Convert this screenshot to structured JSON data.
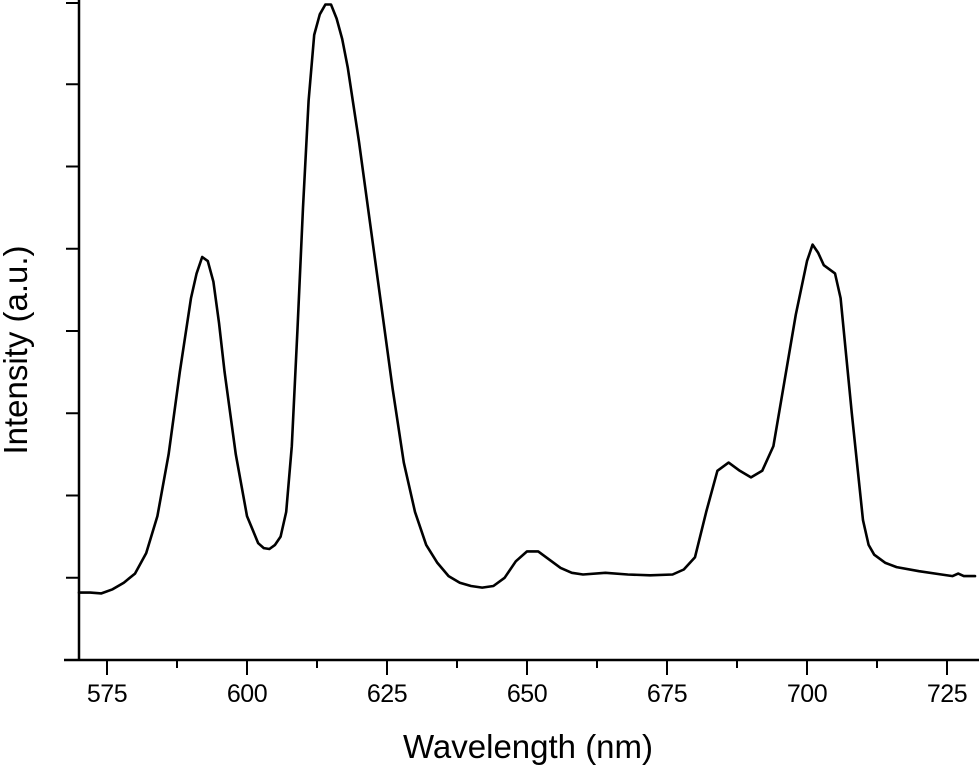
{
  "chart_data": {
    "type": "line",
    "title": "",
    "xlabel": "Wavelength (nm)",
    "ylabel": "Intensity (a.u.)",
    "xlim": [
      570,
      730
    ],
    "ylim": [
      0,
      8
    ],
    "x_ticks": [
      575,
      600,
      625,
      650,
      675,
      700,
      725
    ],
    "x_minor_ticks": [
      587.5,
      612.5,
      637.5,
      662.5,
      687.5,
      712.5
    ],
    "y_ticks": [
      0,
      1,
      2,
      3,
      4,
      5,
      6,
      7,
      8
    ],
    "y_tick_labels_shown": false,
    "grid": false,
    "legend": null,
    "line_color": "#000000",
    "series": [
      {
        "name": "Intensity",
        "x": [
          570,
          572,
          574,
          576,
          578,
          580,
          582,
          584,
          586,
          588,
          590,
          591,
          592,
          593,
          594,
          595,
          596,
          598,
          600,
          602,
          603,
          604,
          605,
          606,
          607,
          608,
          609,
          610,
          611,
          612,
          613,
          614,
          615,
          616,
          617,
          618,
          620,
          622,
          624,
          626,
          628,
          630,
          632,
          634,
          636,
          638,
          640,
          642,
          644,
          646,
          648,
          650,
          652,
          654,
          656,
          658,
          660,
          664,
          668,
          672,
          676,
          678,
          680,
          682,
          684,
          686,
          688,
          690,
          692,
          694,
          696,
          698,
          700,
          701,
          702,
          703,
          704,
          705,
          706,
          707,
          708,
          710,
          711,
          712,
          714,
          716,
          720,
          724,
          726,
          727,
          728,
          730
        ],
        "y": [
          0.82,
          0.82,
          0.81,
          0.86,
          0.94,
          1.05,
          1.3,
          1.75,
          2.5,
          3.5,
          4.4,
          4.7,
          4.9,
          4.85,
          4.6,
          4.1,
          3.5,
          2.5,
          1.75,
          1.42,
          1.36,
          1.35,
          1.4,
          1.5,
          1.8,
          2.6,
          4.0,
          5.5,
          6.8,
          7.6,
          7.85,
          7.97,
          7.97,
          7.8,
          7.55,
          7.2,
          6.3,
          5.3,
          4.3,
          3.3,
          2.4,
          1.8,
          1.4,
          1.18,
          1.02,
          0.94,
          0.9,
          0.88,
          0.9,
          1.0,
          1.2,
          1.32,
          1.32,
          1.22,
          1.12,
          1.06,
          1.04,
          1.06,
          1.04,
          1.03,
          1.04,
          1.1,
          1.25,
          1.8,
          2.3,
          2.4,
          2.3,
          2.22,
          2.3,
          2.6,
          3.4,
          4.2,
          4.85,
          5.05,
          4.95,
          4.8,
          4.75,
          4.7,
          4.4,
          3.7,
          3.0,
          1.7,
          1.4,
          1.28,
          1.18,
          1.13,
          1.08,
          1.04,
          1.02,
          1.05,
          1.02,
          1.02
        ]
      }
    ]
  }
}
